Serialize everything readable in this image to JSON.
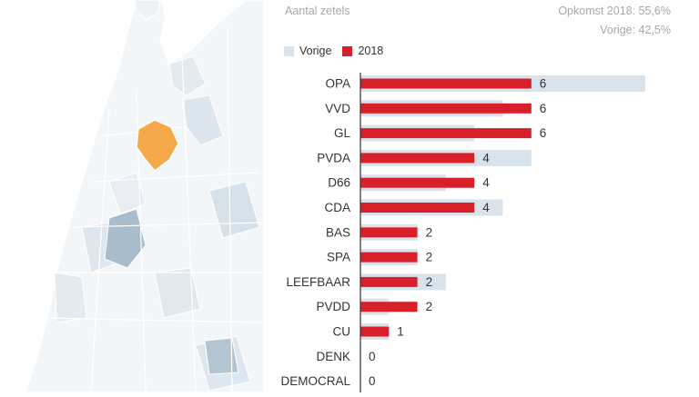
{
  "header": {
    "title": "Aantal zetels",
    "turnout": "Opkomst 2018: 55,6%",
    "previous_turnout": "Vorige: 42,5%"
  },
  "legend": {
    "previous_label": "Vorige",
    "current_label": "2018"
  },
  "colors": {
    "current": "#d7202a",
    "previous": "#d9e3ec",
    "highlight_region": "#f5a94a",
    "map_base": "#f3f6f8",
    "map_shade": "#c9d6e0",
    "water": "#a9bccb"
  },
  "chart_data": {
    "type": "bar",
    "orientation": "horizontal",
    "title": "Aantal zetels",
    "categories": [
      "OPA",
      "VVD",
      "GL",
      "PVDA",
      "D66",
      "CDA",
      "BAS",
      "SPA",
      "LEEFBAAR",
      "PVDD",
      "CU",
      "DENK",
      "DEMOCRAL"
    ],
    "series": [
      {
        "name": "Vorige",
        "values": [
          10,
          5,
          4,
          6,
          3,
          5,
          2,
          2,
          3,
          1,
          1,
          0,
          0
        ]
      },
      {
        "name": "2018",
        "values": [
          6,
          6,
          6,
          4,
          4,
          4,
          2,
          2,
          2,
          2,
          1,
          0,
          0
        ]
      }
    ],
    "data_labels": [
      "6",
      "6",
      "6",
      "4",
      "4",
      "4",
      "2",
      "2",
      "2",
      "2",
      "1",
      "0",
      "0"
    ],
    "xlim": [
      0,
      10
    ],
    "grid": false,
    "legend_position": "top-left"
  }
}
